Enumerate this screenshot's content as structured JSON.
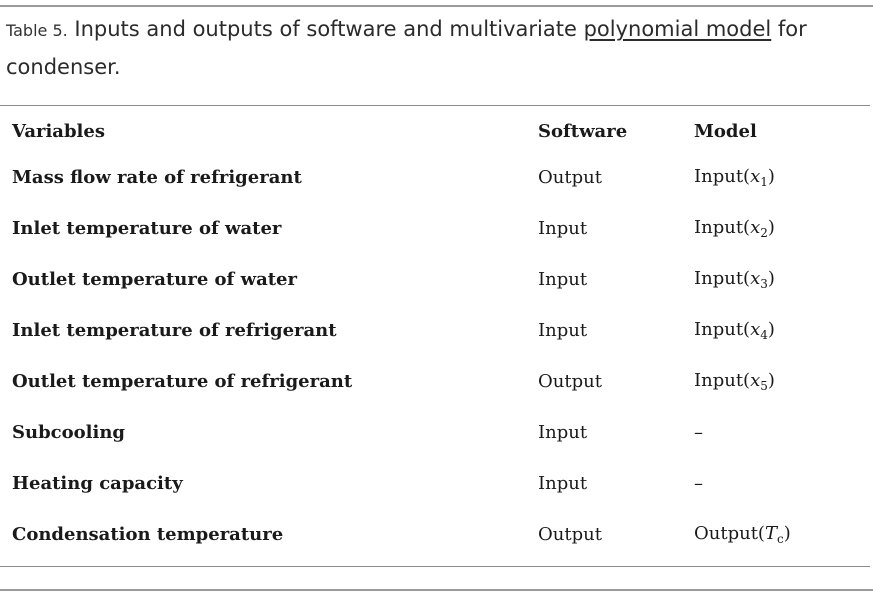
{
  "caption": {
    "label": "Table 5.",
    "text_before": " Inputs and outputs of software and multivariate ",
    "link_text": "polynomial model",
    "text_after": " for condenser."
  },
  "table": {
    "headers": [
      "Variables",
      "Software",
      "Model"
    ],
    "rows": [
      {
        "variable": "Mass flow rate of refrigerant",
        "software": "Output",
        "model_prefix": "Input(",
        "model_var": "x",
        "model_sub": "1",
        "model_suffix": ")"
      },
      {
        "variable": "Inlet temperature of water",
        "software": "Input",
        "model_prefix": "Input(",
        "model_var": "x",
        "model_sub": "2",
        "model_suffix": ")"
      },
      {
        "variable": "Outlet temperature of water",
        "software": "Input",
        "model_prefix": "Input(",
        "model_var": "x",
        "model_sub": "3",
        "model_suffix": ")"
      },
      {
        "variable": "Inlet temperature of refrigerant",
        "software": "Input",
        "model_prefix": "Input(",
        "model_var": "x",
        "model_sub": "4",
        "model_suffix": ")"
      },
      {
        "variable": "Outlet temperature of refrigerant",
        "software": "Output",
        "model_prefix": "Input(",
        "model_var": "x",
        "model_sub": "5",
        "model_suffix": ")"
      },
      {
        "variable": "Subcooling",
        "software": "Input",
        "model_prefix": "–",
        "model_var": "",
        "model_sub": "",
        "model_suffix": ""
      },
      {
        "variable": "Heating capacity",
        "software": "Input",
        "model_prefix": "–",
        "model_var": "",
        "model_sub": "",
        "model_suffix": ""
      },
      {
        "variable": "Condensation temperature",
        "software": "Output",
        "model_prefix": "Output(",
        "model_var": "T",
        "model_sub": "c",
        "model_suffix": ")"
      }
    ]
  }
}
